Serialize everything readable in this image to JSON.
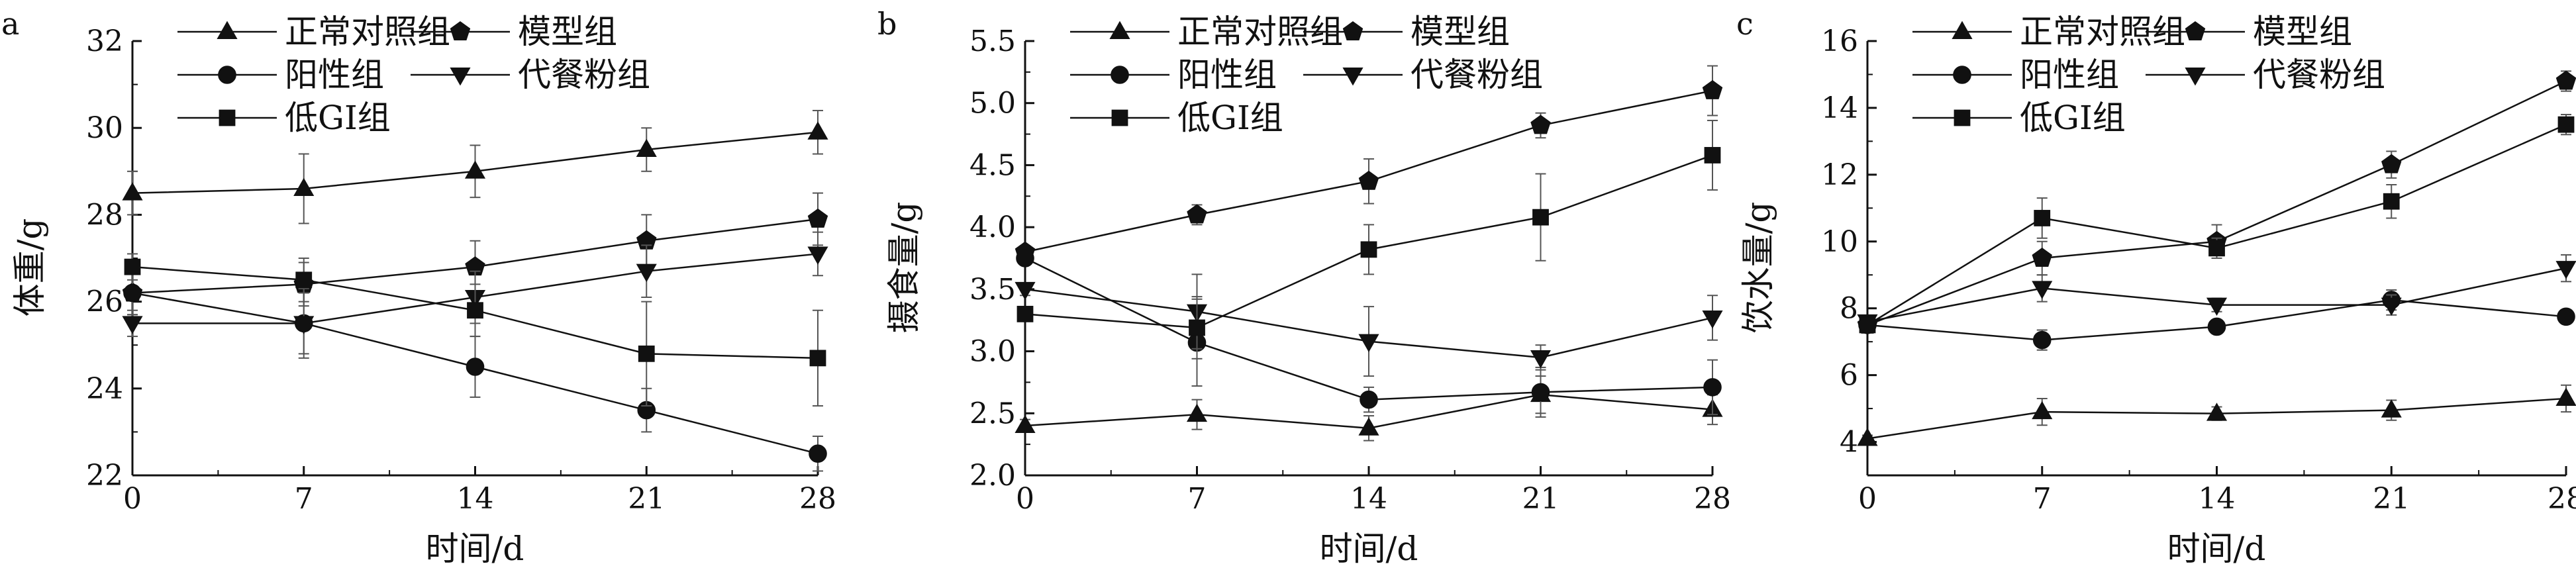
{
  "figure": {
    "x_tick_values": [
      0,
      7,
      14,
      21,
      28
    ]
  },
  "legend": {
    "entries": [
      {
        "label": "正常对照组",
        "marker": "triangle-up"
      },
      {
        "label": "模型组",
        "marker": "pentagon"
      },
      {
        "label": "阳性组",
        "marker": "circle"
      },
      {
        "label": "代餐粉组",
        "marker": "triangle-down"
      },
      {
        "label": "低GI组",
        "marker": "square"
      }
    ]
  },
  "colors": {
    "ink": "#111111",
    "axis": "#111111",
    "background": "#ffffff"
  },
  "chart_data": [
    {
      "type": "line",
      "panel_label": "a",
      "xlabel": "时间/d",
      "ylabel": "体重/g",
      "x": [
        0,
        7,
        14,
        21,
        28
      ],
      "xlim": [
        0,
        28
      ],
      "ylim": [
        22,
        32
      ],
      "y_ticks": [
        22,
        24,
        26,
        28,
        30,
        32
      ],
      "grid": false,
      "legend_position": "top-left",
      "series": [
        {
          "name": "正常对照组",
          "marker": "triangle-up",
          "values": [
            28.5,
            28.6,
            29.0,
            29.5,
            29.9
          ],
          "errors": [
            0.5,
            0.8,
            0.6,
            0.5,
            0.5
          ]
        },
        {
          "name": "模型组",
          "marker": "pentagon",
          "values": [
            26.2,
            26.4,
            26.8,
            27.4,
            27.9
          ],
          "errors": [
            0.5,
            0.5,
            0.6,
            0.6,
            0.6
          ]
        },
        {
          "name": "阳性组",
          "marker": "circle",
          "values": [
            26.2,
            25.5,
            24.5,
            23.5,
            22.5
          ],
          "errors": [
            0.5,
            0.8,
            0.7,
            0.5,
            0.4
          ]
        },
        {
          "name": "代餐粉组",
          "marker": "triangle-down",
          "values": [
            25.5,
            25.5,
            26.1,
            26.7,
            27.1
          ],
          "errors": [
            0.3,
            0.7,
            0.6,
            0.6,
            0.5
          ]
        },
        {
          "name": "低GI组",
          "marker": "square",
          "values": [
            26.8,
            26.5,
            25.8,
            24.8,
            24.7
          ],
          "errors": [
            0.3,
            0.5,
            0.6,
            1.2,
            1.1
          ]
        }
      ]
    },
    {
      "type": "line",
      "panel_label": "b",
      "xlabel": "时间/d",
      "ylabel": "摄食量/g",
      "x": [
        0,
        7,
        14,
        21,
        28
      ],
      "xlim": [
        0,
        28
      ],
      "ylim": [
        2.0,
        5.5
      ],
      "y_ticks": [
        2.0,
        2.5,
        3.0,
        3.5,
        4.0,
        4.5,
        5.0,
        5.5
      ],
      "grid": false,
      "legend_position": "top-left",
      "series": [
        {
          "name": "正常对照组",
          "marker": "triangle-up",
          "values": [
            2.4,
            2.49,
            2.38,
            2.65,
            2.53
          ],
          "errors": [
            0.05,
            0.12,
            0.1,
            0.15,
            0.12
          ]
        },
        {
          "name": "模型组",
          "marker": "pentagon",
          "values": [
            3.8,
            4.1,
            4.37,
            4.82,
            5.1
          ],
          "errors": [
            0.05,
            0.08,
            0.18,
            0.1,
            0.2
          ]
        },
        {
          "name": "阳性组",
          "marker": "circle",
          "values": [
            3.75,
            3.07,
            2.61,
            2.67,
            2.71
          ],
          "errors": [
            0.05,
            0.35,
            0.1,
            0.2,
            0.22
          ]
        },
        {
          "name": "代餐粉组",
          "marker": "triangle-down",
          "values": [
            3.5,
            3.32,
            3.08,
            2.95,
            3.27
          ],
          "errors": [
            0.05,
            0.3,
            0.28,
            0.1,
            0.18
          ]
        },
        {
          "name": "低GI组",
          "marker": "square",
          "values": [
            3.3,
            3.19,
            3.82,
            4.08,
            4.58
          ],
          "errors": [
            0.05,
            0.25,
            0.2,
            0.35,
            0.28
          ]
        }
      ]
    },
    {
      "type": "line",
      "panel_label": "c",
      "xlabel": "时间/d",
      "ylabel": "饮水量/g",
      "x": [
        0,
        7,
        14,
        21,
        28
      ],
      "xlim": [
        0,
        28
      ],
      "ylim": [
        3,
        16
      ],
      "y_ticks": [
        4,
        6,
        8,
        10,
        12,
        14,
        16
      ],
      "grid": false,
      "legend_position": "top-left",
      "series": [
        {
          "name": "正常对照组",
          "marker": "triangle-up",
          "values": [
            4.1,
            4.9,
            4.85,
            4.95,
            5.3
          ],
          "errors": [
            0.1,
            0.4,
            0.2,
            0.3,
            0.4
          ]
        },
        {
          "name": "模型组",
          "marker": "pentagon",
          "values": [
            7.5,
            9.5,
            10.0,
            12.3,
            14.8
          ],
          "errors": [
            0.1,
            0.5,
            0.5,
            0.4,
            0.3
          ]
        },
        {
          "name": "阳性组",
          "marker": "circle",
          "values": [
            7.5,
            7.05,
            7.45,
            8.25,
            7.75
          ],
          "errors": [
            0.1,
            0.3,
            0.2,
            0.3,
            0.2
          ]
        },
        {
          "name": "代餐粉组",
          "marker": "triangle-down",
          "values": [
            7.6,
            8.6,
            8.1,
            8.1,
            9.2
          ],
          "errors": [
            0.1,
            0.4,
            0.2,
            0.3,
            0.4
          ]
        },
        {
          "name": "低GI组",
          "marker": "square",
          "values": [
            7.5,
            10.7,
            9.8,
            11.2,
            13.5
          ],
          "errors": [
            0.1,
            0.6,
            0.3,
            0.5,
            0.3
          ]
        }
      ]
    }
  ]
}
